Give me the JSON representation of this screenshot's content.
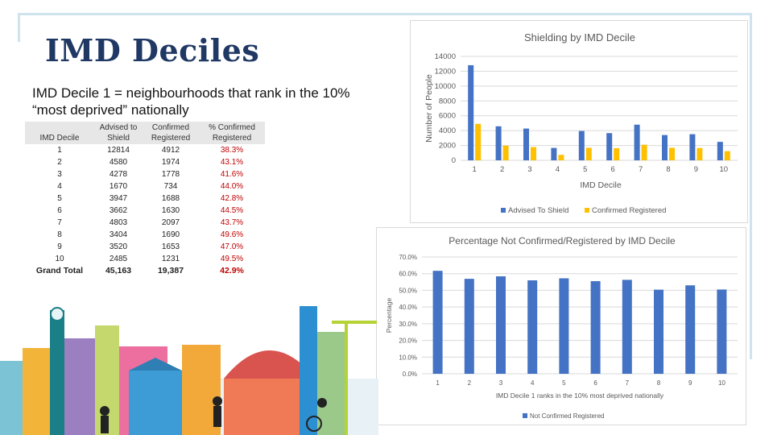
{
  "slide": {
    "title": "IMD Deciles",
    "subtitle": "IMD Decile 1 = neighbourhoods that rank in the 10% “most deprived” nationally"
  },
  "table": {
    "headers": [
      "IMD Decile",
      "Advised to Shield",
      "Confirmed Registered",
      "% Confirmed Registered"
    ],
    "rows": [
      [
        "1",
        "12814",
        "4912",
        "38.3%"
      ],
      [
        "2",
        "4580",
        "1974",
        "43.1%"
      ],
      [
        "3",
        "4278",
        "1778",
        "41.6%"
      ],
      [
        "4",
        "1670",
        "734",
        "44.0%"
      ],
      [
        "5",
        "3947",
        "1688",
        "42.8%"
      ],
      [
        "6",
        "3662",
        "1630",
        "44.5%"
      ],
      [
        "7",
        "4803",
        "2097",
        "43.7%"
      ],
      [
        "8",
        "3404",
        "1690",
        "49.6%"
      ],
      [
        "9",
        "3520",
        "1653",
        "47.0%"
      ],
      [
        "10",
        "2485",
        "1231",
        "49.5%"
      ]
    ],
    "total": [
      "Grand Total",
      "45,163",
      "19,387",
      "42.9%"
    ]
  },
  "chart_data": [
    {
      "type": "bar",
      "title": "Shielding by IMD Decile",
      "xlabel": "IMD Decile",
      "ylabel": "Number of People",
      "categories": [
        "1",
        "2",
        "3",
        "4",
        "5",
        "6",
        "7",
        "8",
        "9",
        "10"
      ],
      "ylim": [
        0,
        14000
      ],
      "yticks": [
        0,
        2000,
        4000,
        6000,
        8000,
        10000,
        12000,
        14000
      ],
      "grid": true,
      "legend": "bottom",
      "series": [
        {
          "name": "Advised To Shield",
          "color": "#4472c4",
          "values": [
            12814,
            4580,
            4278,
            1670,
            3947,
            3662,
            4803,
            3404,
            3520,
            2485
          ]
        },
        {
          "name": "Confirmed Registered",
          "color": "#ffc000",
          "values": [
            4912,
            1974,
            1778,
            734,
            1688,
            1630,
            2097,
            1690,
            1653,
            1231
          ]
        }
      ]
    },
    {
      "type": "bar",
      "title": "Percentage Not Confirmed/Registered by IMD Decile",
      "xlabel": "IMD Decile 1 ranks in the 10% most deprived nationally",
      "ylabel": "Percentage",
      "categories": [
        "1",
        "2",
        "3",
        "4",
        "5",
        "6",
        "7",
        "8",
        "9",
        "10"
      ],
      "ylim": [
        0,
        70
      ],
      "yticks": [
        0,
        10,
        20,
        30,
        40,
        50,
        60,
        70
      ],
      "ytick_labels": [
        "0.0%",
        "10.0%",
        "20.0%",
        "30.0%",
        "40.0%",
        "50.0%",
        "60.0%",
        "70.0%"
      ],
      "grid": true,
      "legend": "bottom",
      "series": [
        {
          "name": "Not Confirmed Registered",
          "color": "#4472c4",
          "values": [
            61.7,
            56.9,
            58.4,
            56.0,
            57.2,
            55.5,
            56.3,
            50.4,
            53.0,
            50.5
          ]
        }
      ]
    }
  ],
  "colors": {
    "title": "#1f3864",
    "pct_text": "#c00000",
    "header_bg": "#e7e7e7"
  }
}
